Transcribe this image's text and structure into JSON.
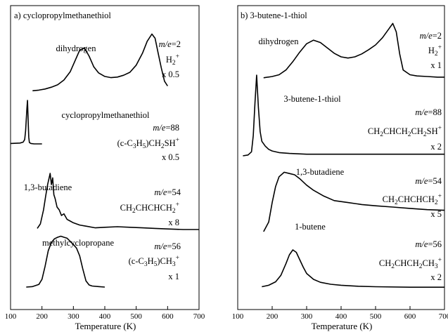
{
  "chart_data": [
    {
      "type": "line",
      "panel_label": "a) cyclopropylmethanethiol",
      "xlabel": "Temperature (K)",
      "xlim": [
        100,
        700
      ],
      "xticks": [
        "100",
        "200",
        "300",
        "400",
        "500",
        "600",
        "700"
      ],
      "series": [
        {
          "name": "dihydrogen",
          "label_lines": [
            "m/e=2",
            "H2+",
            "x 0.5"
          ],
          "x": [
            170,
            190,
            210,
            230,
            250,
            270,
            290,
            305,
            320,
            335,
            350,
            365,
            380,
            400,
            420,
            440,
            460,
            480,
            500,
            520,
            535,
            550,
            560,
            570,
            580,
            590,
            600
          ],
          "y": [
            0.02,
            0.03,
            0.05,
            0.08,
            0.12,
            0.2,
            0.34,
            0.52,
            0.7,
            0.74,
            0.6,
            0.42,
            0.32,
            0.26,
            0.24,
            0.25,
            0.28,
            0.33,
            0.45,
            0.65,
            0.85,
            0.97,
            0.9,
            0.65,
            0.4,
            0.18,
            0.1
          ]
        },
        {
          "name": "cyclopropylmethanethiol",
          "label_lines": [
            "m/e=88",
            "(c-C3H5)CH2SH+",
            "x 0.5"
          ],
          "x": [
            100,
            130,
            140,
            145,
            148,
            150,
            152,
            154,
            156,
            158,
            160,
            165,
            175,
            200
          ],
          "y": [
            0.01,
            0.02,
            0.04,
            0.1,
            0.3,
            0.55,
            0.8,
            1.0,
            0.55,
            0.15,
            0.03,
            0.01,
            0.0,
            0.0
          ]
        },
        {
          "name": "1,3-butadiene",
          "label_lines": [
            "m/e=54",
            "CH2CHCHCH2+",
            "x 8"
          ],
          "x": [
            185,
            195,
            205,
            212,
            218,
            222,
            226,
            230,
            234,
            238,
            242,
            248,
            255,
            262,
            270,
            280,
            290,
            300,
            320,
            340,
            370,
            400,
            440,
            480,
            520,
            560,
            600,
            650,
            700
          ],
          "y": [
            0.02,
            0.1,
            0.35,
            0.6,
            0.8,
            0.9,
            1.0,
            0.8,
            0.92,
            0.62,
            0.55,
            0.4,
            0.35,
            0.25,
            0.28,
            0.18,
            0.15,
            0.12,
            0.08,
            0.06,
            0.03,
            0.04,
            0.05,
            0.04,
            0.03,
            0.02,
            0.01,
            0.0,
            0.0
          ]
        },
        {
          "name": "methylcyclopropane",
          "label_lines": [
            "m/e=56",
            "(c-C3H5)CH3+",
            "x 1"
          ],
          "x": [
            150,
            170,
            190,
            200,
            210,
            220,
            230,
            240,
            250,
            260,
            270,
            280,
            290,
            300,
            310,
            320,
            330,
            340,
            350,
            360,
            380,
            400
          ],
          "y": [
            0.0,
            0.01,
            0.05,
            0.15,
            0.4,
            0.7,
            0.86,
            0.93,
            0.96,
            0.98,
            0.96,
            0.94,
            0.88,
            0.82,
            0.75,
            0.6,
            0.35,
            0.12,
            0.04,
            0.02,
            0.01,
            0.0
          ]
        }
      ]
    },
    {
      "type": "line",
      "panel_label": "b) 3-butene-1-thiol",
      "xlabel": "Temperature (K)",
      "xlim": [
        100,
        700
      ],
      "xticks": [
        "100",
        "200",
        "300",
        "400",
        "500",
        "600",
        "700"
      ],
      "series": [
        {
          "name": "dihydrogen",
          "label_lines": [
            "m/e=2",
            "H2+",
            "x 1"
          ],
          "x": [
            175,
            200,
            220,
            240,
            260,
            280,
            300,
            320,
            340,
            360,
            380,
            400,
            420,
            440,
            460,
            480,
            500,
            520,
            540,
            550,
            560,
            570,
            580,
            600,
            620,
            650,
            680,
            700
          ],
          "y": [
            0.05,
            0.07,
            0.1,
            0.18,
            0.32,
            0.48,
            0.62,
            0.68,
            0.64,
            0.55,
            0.46,
            0.4,
            0.38,
            0.4,
            0.45,
            0.52,
            0.6,
            0.72,
            0.88,
            0.96,
            0.82,
            0.45,
            0.18,
            0.1,
            0.08,
            0.07,
            0.06,
            0.06
          ]
        },
        {
          "name": "3-butene-1-thiol",
          "label_lines": [
            "m/e=88",
            "CH2CHCH2CH2SH+",
            "x 2"
          ],
          "x": [
            115,
            130,
            140,
            145,
            150,
            155,
            160,
            165,
            170,
            180,
            190,
            200,
            220,
            250,
            300,
            400,
            500,
            600,
            700
          ],
          "y": [
            0.0,
            0.01,
            0.05,
            0.25,
            0.65,
            1.0,
            0.6,
            0.3,
            0.18,
            0.12,
            0.08,
            0.06,
            0.04,
            0.03,
            0.02,
            0.02,
            0.02,
            0.02,
            0.02
          ]
        },
        {
          "name": "1,3-butadiene",
          "label_lines": [
            "m/e=54",
            "CH2CHCHCH2+",
            "x 5"
          ],
          "x": [
            175,
            190,
            200,
            210,
            220,
            235,
            250,
            265,
            280,
            300,
            320,
            350,
            380,
            420,
            460,
            500,
            550,
            600,
            650,
            700
          ],
          "y": [
            0.0,
            0.15,
            0.45,
            0.7,
            0.85,
            0.92,
            0.9,
            0.88,
            0.82,
            0.72,
            0.64,
            0.55,
            0.48,
            0.45,
            0.42,
            0.4,
            0.38,
            0.36,
            0.34,
            0.33
          ]
        },
        {
          "name": "1-butene",
          "label_lines": [
            "m/e=56",
            "CH2CHCH2CH3+",
            "x 2"
          ],
          "x": [
            170,
            190,
            210,
            225,
            240,
            250,
            260,
            270,
            280,
            290,
            300,
            320,
            340,
            370,
            400,
            450,
            500,
            600,
            700
          ],
          "y": [
            0.05,
            0.08,
            0.15,
            0.28,
            0.52,
            0.7,
            0.8,
            0.75,
            0.6,
            0.45,
            0.32,
            0.2,
            0.14,
            0.1,
            0.08,
            0.06,
            0.05,
            0.04,
            0.04
          ]
        }
      ]
    }
  ]
}
